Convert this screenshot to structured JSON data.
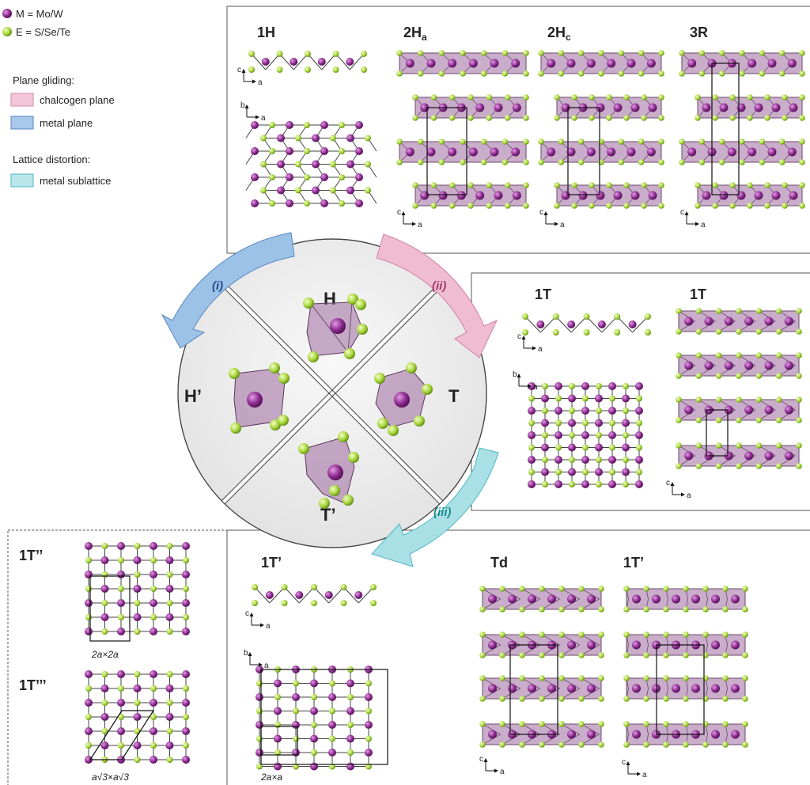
{
  "legend": {
    "atom_m": "M = Mo/W",
    "atom_e": "E = S/Se/Te",
    "plane_gliding_title": "Plane gliding:",
    "chalcogen_plane": "chalcogen plane",
    "metal_plane": "metal plane",
    "lattice_distortion_title": "Lattice distortion:",
    "metal_sublattice": "metal sublattice"
  },
  "colors": {
    "metal_atom": "#8a2a8c",
    "chalcogen_atom": "#a7d53b",
    "polyhedron": "#9c6a9e",
    "chalcogen_plane": "#f3c6d9",
    "metal_plane": "#a9c8ec",
    "metal_sublattice": "#b9e6ea",
    "arrow_i": "#9cc2e8",
    "arrow_ii": "#f0bcd2",
    "arrow_iii": "#a9e0e6",
    "label_i": "#2a4a8a",
    "label_ii": "#a03a6a",
    "label_iii": "#1a8a8a"
  },
  "panels": {
    "h_family": {
      "one_h": "1H",
      "two_ha": "2H",
      "two_ha_sub": "a",
      "two_hc": "2H",
      "two_hc_sub": "c",
      "three_r": "3R"
    },
    "t_family": {
      "one_t_side": "1T",
      "one_t_stack": "1T"
    },
    "t_prime_family": {
      "one_t_prime": "1T’",
      "cell": "2a×a",
      "td": "Td",
      "one_t_prime_stack": "1T’"
    },
    "distorted": {
      "one_t_dprime": "1T’’",
      "cell_dprime": "2a×2a",
      "one_t_tprime": "1T’’’",
      "cell_tprime": "a√3×a√3"
    }
  },
  "axes": {
    "c": "c",
    "a": "a",
    "b": "b"
  },
  "wheel": {
    "h": "H",
    "t": "T",
    "h_prime": "H’",
    "t_prime": "T’"
  },
  "arrows": {
    "i": "(i)",
    "ii": "(ii)",
    "iii": "(iii)"
  }
}
